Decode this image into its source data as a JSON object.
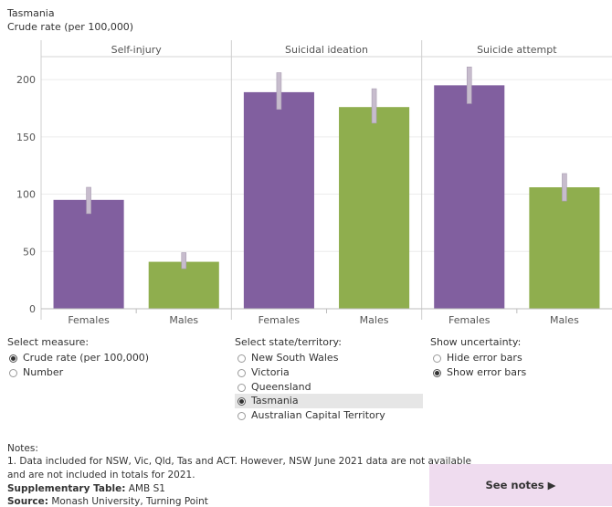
{
  "header": {
    "title": "Tasmania",
    "subtitle": "Crude rate (per 100,000)"
  },
  "chart_data": {
    "type": "bar",
    "panels": [
      "Self-injury",
      "Suicidal ideation",
      "Suicide attempt"
    ],
    "categories": [
      "Females",
      "Males"
    ],
    "values": [
      [
        95,
        41
      ],
      [
        189,
        176
      ],
      [
        195,
        106
      ]
    ],
    "error_bars": [
      [
        [
          83,
          106
        ],
        [
          35,
          49
        ]
      ],
      [
        [
          174,
          206
        ],
        [
          162,
          192
        ]
      ],
      [
        [
          179,
          211
        ],
        [
          94,
          118
        ]
      ]
    ],
    "colors": {
      "Females": "#815f9f",
      "Males": "#8fae4e"
    },
    "error_bar_color": "#c7bccd",
    "y_ticks": [
      0,
      50,
      100,
      150,
      200
    ],
    "ylim": [
      0,
      220
    ],
    "grid": true
  },
  "controls": {
    "measure": {
      "title": "Select measure:",
      "options": [
        "Crude rate (per 100,000)",
        "Number"
      ],
      "selected": 0
    },
    "state": {
      "title": "Select state/territory:",
      "options": [
        "New South Wales",
        "Victoria",
        "Queensland",
        "Tasmania",
        "Australian Capital Territory"
      ],
      "selected": 3
    },
    "uncertainty": {
      "title": "Show uncertainty:",
      "options": [
        "Hide error bars",
        "Show error bars"
      ],
      "selected": 1
    }
  },
  "notes": {
    "heading": "Notes:",
    "line1": "1. Data included for  NSW, Vic, Qld, Tas and ACT. However, NSW June 2021 data are not available",
    "line2": "and are not included in totals for 2021.",
    "supp_label": "Supplementary Table:",
    "supp_value": "AMB S1",
    "source_label": "Source:",
    "source_value": "Monash University, Turning Point"
  },
  "see_notes": {
    "label": "See notes ▶"
  }
}
